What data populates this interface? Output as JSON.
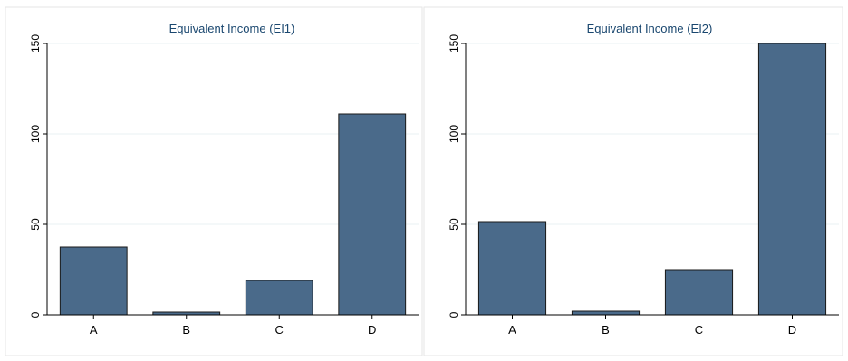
{
  "chart_data": [
    {
      "type": "bar",
      "title": "Equivalent Income (EI1)",
      "xlabel": "",
      "ylabel": "",
      "categories": [
        "A",
        "B",
        "C",
        "D"
      ],
      "values": [
        37.5,
        1.5,
        19,
        111
      ],
      "ylim": [
        0,
        150
      ],
      "yticks": [
        0,
        50,
        100,
        150
      ],
      "grid": true,
      "bar_color": "#4a6a8a",
      "bar_edge_color": "#1a1a1a"
    },
    {
      "type": "bar",
      "title": "Equivalent Income (EI2)",
      "xlabel": "",
      "ylabel": "",
      "categories": [
        "A",
        "B",
        "C",
        "D"
      ],
      "values": [
        51.5,
        2,
        25,
        151
      ],
      "ylim": [
        0,
        150
      ],
      "yticks": [
        0,
        50,
        100,
        150
      ],
      "grid": true,
      "bar_color": "#4a6a8a",
      "bar_edge_color": "#1a1a1a"
    }
  ]
}
